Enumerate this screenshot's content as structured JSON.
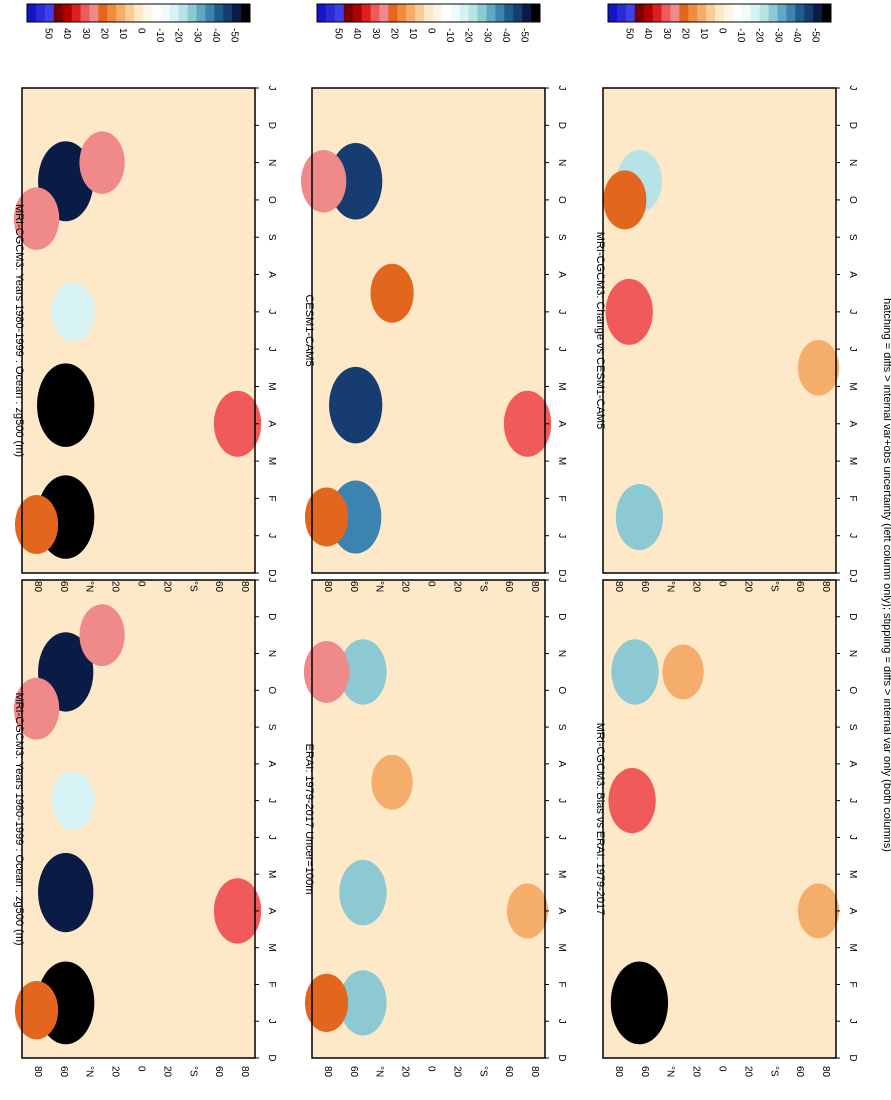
{
  "footnote": "hatching = diffs > internal var+obs uncertainty (left column only); stippling = diffs > internal var only (both columns)",
  "colorbar": {
    "labels": [
      "50",
      "40",
      "30",
      "20",
      "10",
      "0",
      "-10",
      "-20",
      "-30",
      "-40",
      "-50"
    ],
    "colors": [
      "#1414c8",
      "#2b2bd6",
      "#4040e8",
      "#7a0000",
      "#b00000",
      "#dd1f1f",
      "#f05a5a",
      "#f08a8a",
      "#e2661e",
      "#f08c3c",
      "#f4ad6b",
      "#f9cd98",
      "#fde8c8",
      "#fff5e6",
      "#ffffff",
      "#f1fbfc",
      "#d6f2f4",
      "#b8e3e6",
      "#8cc9d3",
      "#5fa8c2",
      "#3c83b0",
      "#1f5c8c",
      "#163c70",
      "#0a1b46",
      "#000000"
    ]
  },
  "axes": {
    "month_ticks": [
      "D",
      "J",
      "F",
      "M",
      "A",
      "M",
      "J",
      "J",
      "A",
      "S",
      "O",
      "N",
      "D",
      "J"
    ],
    "lat_ticks": [
      "80",
      "60",
      "°N",
      "20",
      "0",
      "20",
      "°S",
      "60",
      "80"
    ]
  },
  "chart_data": [
    {
      "type": "heatmap",
      "title": "MRI-CGCM3: Years 1980-1999 : Ocean : zg500 (m)",
      "x": "month (D..J)",
      "y": "latitude (80N..80S)",
      "features": [
        {
          "month": 1.5,
          "lat": 50,
          "value": -50
        },
        {
          "month": 4.5,
          "lat": 50,
          "value": -45
        },
        {
          "month": 10.5,
          "lat": 50,
          "value": -45
        },
        {
          "month": 7.0,
          "lat": 45,
          "value": -15
        },
        {
          "month": 1.3,
          "lat": 70,
          "value": 15
        },
        {
          "month": 11.5,
          "lat": 25,
          "value": 20
        },
        {
          "month": 9.5,
          "lat": 70,
          "value": 20
        },
        {
          "month": 4.0,
          "lat": -68,
          "value": 25
        }
      ]
    },
    {
      "type": "heatmap",
      "title": "MRI-CGCM3: Years 1980-1999 : Ocean : zg500 (m)",
      "x": "month (D..J)",
      "y": "latitude (80N..80S)",
      "features": [
        {
          "month": 1.5,
          "lat": 50,
          "value": -50
        },
        {
          "month": 4.5,
          "lat": 50,
          "value": -50
        },
        {
          "month": 10.5,
          "lat": 50,
          "value": -45
        },
        {
          "month": 7.0,
          "lat": 45,
          "value": -15
        },
        {
          "month": 1.3,
          "lat": 70,
          "value": 15
        },
        {
          "month": 11.0,
          "lat": 25,
          "value": 20
        },
        {
          "month": 9.5,
          "lat": 70,
          "value": 20
        },
        {
          "month": 4.0,
          "lat": -68,
          "value": 25
        }
      ]
    },
    {
      "type": "heatmap",
      "title": "ERAI: 1979-2017 Uncer=100m",
      "x": "month (D..J)",
      "y": "latitude (80N..80S)",
      "features": [
        {
          "month": 1.5,
          "lat": 45,
          "value": -25
        },
        {
          "month": 4.5,
          "lat": 45,
          "value": -25
        },
        {
          "month": 10.5,
          "lat": 45,
          "value": -25
        },
        {
          "month": 1.5,
          "lat": 70,
          "value": 15
        },
        {
          "month": 10.5,
          "lat": 70,
          "value": 20
        },
        {
          "month": 7.5,
          "lat": 25,
          "value": 10
        },
        {
          "month": 4.0,
          "lat": -68,
          "value": 10
        }
      ]
    },
    {
      "type": "heatmap",
      "title": "CESM1-CAM5",
      "x": "month (D..J)",
      "y": "latitude (80N..80S)",
      "features": [
        {
          "month": 1.5,
          "lat": 50,
          "value": -35
        },
        {
          "month": 4.5,
          "lat": 50,
          "value": -40
        },
        {
          "month": 10.5,
          "lat": 50,
          "value": -40
        },
        {
          "month": 1.5,
          "lat": 70,
          "value": 15
        },
        {
          "month": 10.5,
          "lat": 72,
          "value": 20
        },
        {
          "month": 7.5,
          "lat": 25,
          "value": 15
        },
        {
          "month": 4.0,
          "lat": -68,
          "value": 25
        }
      ]
    },
    {
      "type": "heatmap",
      "title": "MRI-CGCM3: Bias vs ERAI: 1979-2017",
      "x": "month (D..J)",
      "y": "latitude (80N..80S)",
      "features": [
        {
          "month": 1.5,
          "lat": 55,
          "value": -50
        },
        {
          "month": 7.0,
          "lat": 60,
          "value": 25
        },
        {
          "month": 10.5,
          "lat": 58,
          "value": -25
        },
        {
          "month": 10.5,
          "lat": 25,
          "value": 10
        },
        {
          "month": 4.0,
          "lat": -68,
          "value": 10
        }
      ]
    },
    {
      "type": "heatmap",
      "title": "MRI-CGCM3: Change vs CESM1-CAM5",
      "x": "month (D..J)",
      "y": "latitude (80N..80S)",
      "features": [
        {
          "month": 1.5,
          "lat": 55,
          "value": -25
        },
        {
          "month": 7.0,
          "lat": 62,
          "value": 25
        },
        {
          "month": 10.5,
          "lat": 55,
          "value": -20
        },
        {
          "month": 10.0,
          "lat": 65,
          "value": 15
        },
        {
          "month": 5.5,
          "lat": -68,
          "value": 10
        }
      ]
    }
  ]
}
